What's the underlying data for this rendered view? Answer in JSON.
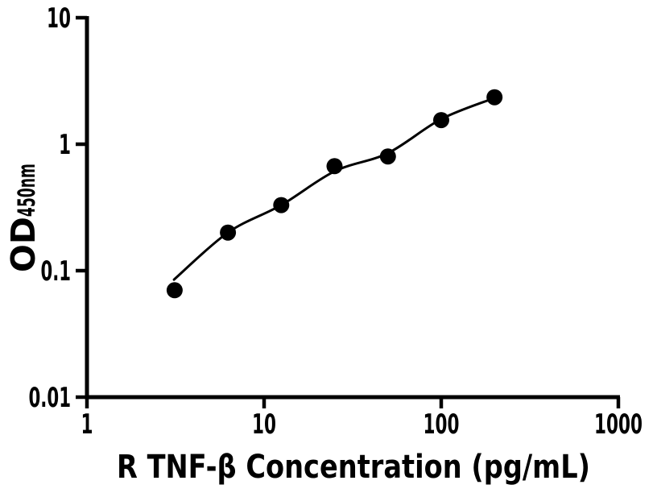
{
  "figure": {
    "background": "#ffffff",
    "foreground": "#000000"
  },
  "chart_data": {
    "type": "scatter",
    "title": "",
    "xlabel": "R TNF-β Concentration (pg/mL)",
    "ylabel": "OD450nm",
    "ylabel_base": "OD",
    "ylabel_subscript": "450nm",
    "x_scale": "log",
    "y_scale": "log",
    "xlim": [
      1,
      1000
    ],
    "ylim": [
      0.01,
      10
    ],
    "x_ticks": [
      1,
      10,
      100,
      1000
    ],
    "x_tick_labels": [
      "1",
      "10",
      "100",
      "1000"
    ],
    "y_ticks": [
      10,
      1,
      0.1,
      0.01
    ],
    "y_tick_labels": [
      "10",
      "1",
      "0.1",
      "0.01"
    ],
    "grid": false,
    "legend_position": "none",
    "marker_color": "#000000",
    "line_color": "#000000",
    "series": [
      {
        "name": "standard-points",
        "type": "scatter",
        "marker": "circle",
        "x": [
          3.125,
          6.25,
          12.5,
          25,
          50,
          100,
          200
        ],
        "y": [
          0.07,
          0.2,
          0.33,
          0.67,
          0.8,
          1.55,
          2.35
        ]
      },
      {
        "name": "fit-curve",
        "type": "line",
        "x": [
          3.1,
          6.25,
          12.5,
          25,
          50,
          100,
          200
        ],
        "y": [
          0.085,
          0.2,
          0.33,
          0.61,
          0.85,
          1.58,
          2.32
        ]
      }
    ]
  }
}
